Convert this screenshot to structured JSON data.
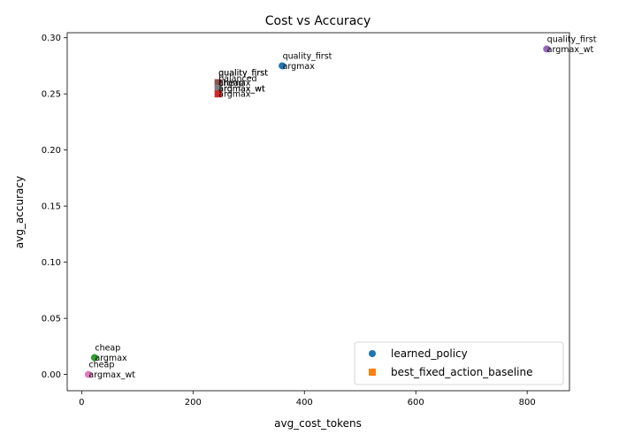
{
  "chart_data": {
    "type": "scatter",
    "title": "Cost vs Accuracy",
    "xlabel": "avg_cost_tokens",
    "ylabel": "avg_accuracy",
    "xlim": [
      -26,
      876
    ],
    "ylim": [
      -0.0145,
      0.3045
    ],
    "xticks": [
      0,
      200,
      400,
      600,
      800
    ],
    "yticks": [
      0.0,
      0.05,
      0.1,
      0.15,
      0.2,
      0.25,
      0.3
    ],
    "xtick_labels": [
      "0",
      "200",
      "400",
      "600",
      "800"
    ],
    "ytick_labels": [
      "0.00",
      "0.05",
      "0.10",
      "0.15",
      "0.20",
      "0.25",
      "0.30"
    ],
    "grid": false,
    "legend_position": "lower right",
    "legend": [
      {
        "name": "learned_policy",
        "marker": "circle",
        "color": "#1f77b4"
      },
      {
        "name": "best_fixed_action_baseline",
        "marker": "square",
        "color": "#ff7f0e"
      }
    ],
    "points": [
      {
        "x": 360,
        "y": 0.275,
        "marker": "circle",
        "color": "#1f77b4",
        "label": [
          "quality_first",
          "argmax"
        ]
      },
      {
        "x": 835,
        "y": 0.29,
        "marker": "circle",
        "color": "#9467bd",
        "label": [
          "quality_first",
          "argmax_wt"
        ]
      },
      {
        "x": 23,
        "y": 0.015,
        "marker": "circle",
        "color": "#2ca02c",
        "label": [
          "cheap",
          "argmax"
        ]
      },
      {
        "x": 12,
        "y": 0.0,
        "marker": "circle",
        "color": "#e377c2",
        "label": [
          "cheap",
          "argmax_wt"
        ]
      },
      {
        "x": 245,
        "y": 0.26,
        "marker": "circle",
        "color": "#8c564b",
        "label": [
          "quality_first",
          "cheap"
        ]
      },
      {
        "x": 245,
        "y": 0.255,
        "marker": "circle",
        "color": "#7f7f7f",
        "label": [
          "balanced",
          "argmax_wt"
        ]
      },
      {
        "x": 245,
        "y": 0.26,
        "marker": "square",
        "color": "#8c564b",
        "label": [
          "quality_first",
          "argmax"
        ]
      },
      {
        "x": 245,
        "y": 0.255,
        "marker": "square",
        "color": "#7f7f7f",
        "label": [
          "argmax_wt"
        ]
      },
      {
        "x": 245,
        "y": 0.25,
        "marker": "square",
        "color": "#d62728",
        "label": [
          "argmax"
        ]
      }
    ]
  }
}
